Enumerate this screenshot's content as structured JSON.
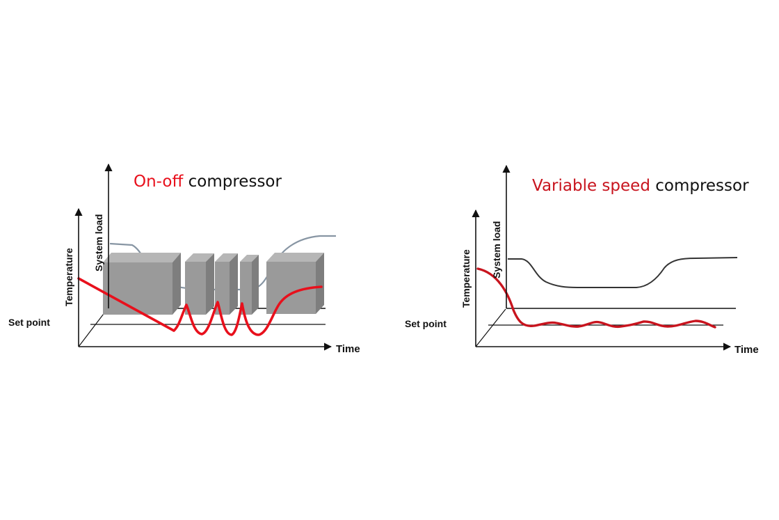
{
  "colors": {
    "temp_on_off": "#e8101c",
    "temp_variable": "#c8141e",
    "load_on_off": "#8795a3",
    "load_variable": "#333333",
    "compressor_block": "#9a9a9a",
    "title_highlight_left": "#e8101c",
    "title_highlight_right": "#c8141e"
  },
  "left": {
    "title_highlight": "On-off",
    "title_rest": " compressor",
    "ylabel_temperature": "Temperature",
    "ylabel_system_load": "System load",
    "setpoint_label": "Set point",
    "xlabel": "Time",
    "blocks_icon": "compressor-on-block"
  },
  "right": {
    "title_highlight": "Variable speed",
    "title_rest": " compressor",
    "ylabel_temperature": "Temperature",
    "ylabel_system_load": "System load",
    "setpoint_label": "Set point",
    "xlabel": "Time"
  }
}
